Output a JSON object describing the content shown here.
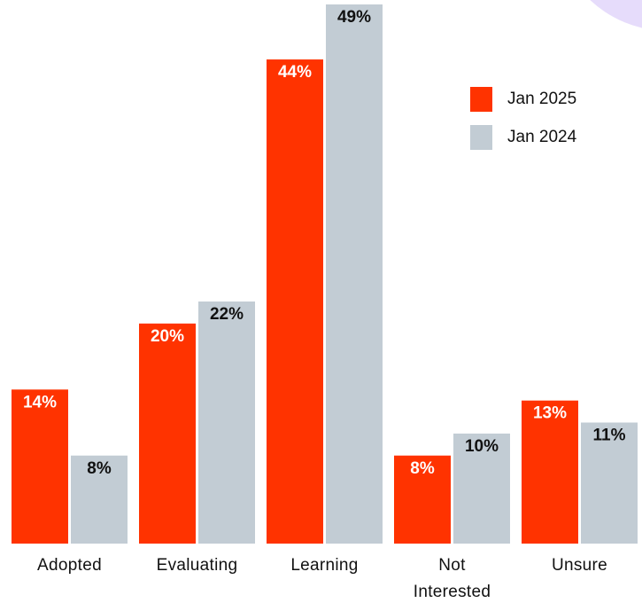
{
  "chart_data": {
    "type": "bar",
    "categories": [
      "Adopted",
      "Evaluating",
      "Learning",
      "Not Interested",
      "Unsure"
    ],
    "series": [
      {
        "name": "Jan 2025",
        "color": "#ff3300",
        "values": [
          14,
          20,
          44,
          8,
          13
        ],
        "value_labels": [
          "14%",
          "20%",
          "44%",
          "8%",
          "13%"
        ]
      },
      {
        "name": "Jan 2024",
        "color": "#c2ccd4",
        "values": [
          8,
          22,
          49,
          10,
          11
        ],
        "value_labels": [
          "8%",
          "22%",
          "49%",
          "10%",
          "11%"
        ]
      }
    ],
    "legend": "upper right"
  }
}
